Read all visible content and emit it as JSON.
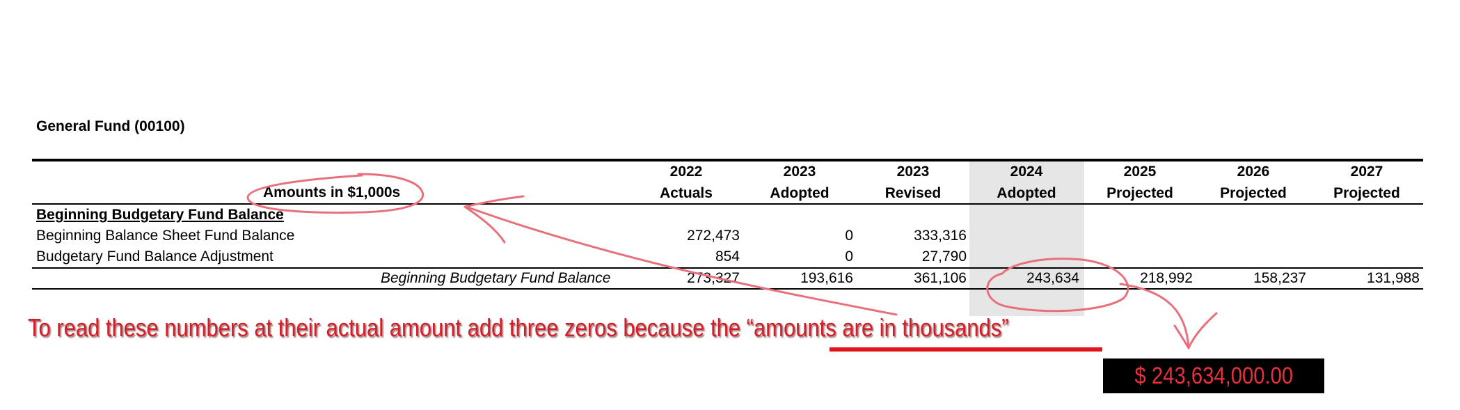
{
  "fund_title": "General Fund (00100)",
  "amounts_label": "Amounts in $1,000s",
  "columns": [
    {
      "year": "2022",
      "type": "Actuals"
    },
    {
      "year": "2023",
      "type": "Adopted"
    },
    {
      "year": "2023",
      "type": "Revised"
    },
    {
      "year": "2024",
      "type": "Adopted"
    },
    {
      "year": "2025",
      "type": "Projected"
    },
    {
      "year": "2026",
      "type": "Projected"
    },
    {
      "year": "2027",
      "type": "Projected"
    }
  ],
  "section_heading": "Beginning Budgetary Fund Balance",
  "rows": [
    {
      "label": "Beginning Balance Sheet Fund Balance",
      "values": [
        "272,473",
        "0",
        "333,316",
        "",
        "",
        "",
        ""
      ]
    },
    {
      "label": "Budgetary Fund Balance Adjustment",
      "values": [
        "854",
        "0",
        "27,790",
        "",
        "",
        "",
        ""
      ]
    }
  ],
  "total_row": {
    "label": "Beginning Budgetary Fund Balance",
    "values": [
      "273,327",
      "193,616",
      "361,106",
      "243,634",
      "218,992",
      "158,237",
      "131,988"
    ]
  },
  "annotation": {
    "note_text_before": "To read these numbers at their actual amount add three zeros because the “",
    "note_text_underlined": "amounts are in thousands",
    "note_text_after": "”",
    "result": "$ 243,634,000.00",
    "ink_color": "#e8707c",
    "text_color": "#d21f2a"
  }
}
